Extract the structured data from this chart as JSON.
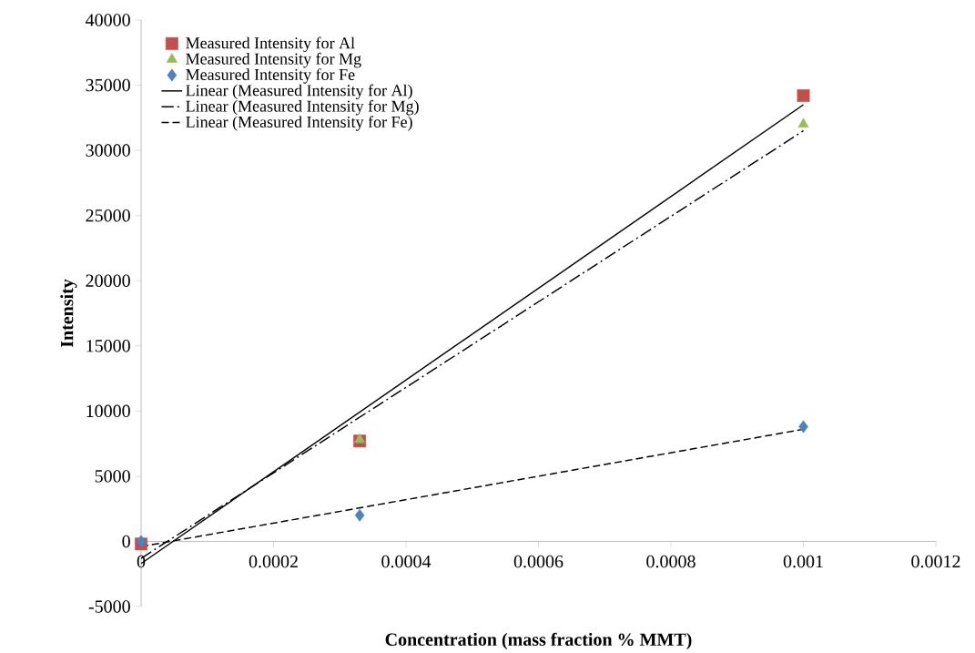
{
  "chart_data": {
    "type": "scatter",
    "xlabel": "Concentration (mass fraction % MMT)",
    "ylabel": "Intensity",
    "xlim": [
      0,
      0.0012
    ],
    "xticks": [
      0,
      0.0002,
      0.0004,
      0.0006,
      0.0008,
      0.001,
      0.0012
    ],
    "ylim": [
      -5000,
      40000
    ],
    "yticks": [
      -5000,
      0,
      5000,
      10000,
      15000,
      20000,
      25000,
      30000,
      35000,
      40000
    ],
    "grid": false,
    "legend": "top left",
    "series": [
      {
        "name": "Measured Intensity for Al",
        "color": "#c0504d",
        "marker": "square",
        "x": [
          0,
          0.00033,
          0.001
        ],
        "values": [
          -200,
          7700,
          34200
        ]
      },
      {
        "name": "Measured Intensity for Mg",
        "color": "#9bbb59",
        "marker": "triangle",
        "x": [
          0.00033,
          0.001
        ],
        "values": [
          7800,
          32000
        ]
      },
      {
        "name": "Measured Intensity for Fe",
        "color": "#4f81bd",
        "marker": "diamond",
        "x": [
          0,
          0.00033,
          0.001
        ],
        "values": [
          0,
          2000,
          8800
        ]
      },
      {
        "type": "line",
        "name": "Linear (Measured Intensity for Al)",
        "color": "#000000",
        "line_style": "solid",
        "x": [
          0,
          0.001
        ],
        "values": [
          -1700,
          33500
        ]
      },
      {
        "type": "line",
        "name": "Linear (Measured Intensity for Mg)",
        "color": "#000000",
        "line_style": "dashdot",
        "x": [
          0,
          0.001
        ],
        "values": [
          -1300,
          31500
        ]
      },
      {
        "type": "line",
        "name": "Linear (Measured Intensity for Fe)",
        "color": "#000000",
        "line_style": "dashed",
        "x": [
          0,
          0.001
        ],
        "values": [
          -400,
          8600
        ]
      }
    ]
  }
}
